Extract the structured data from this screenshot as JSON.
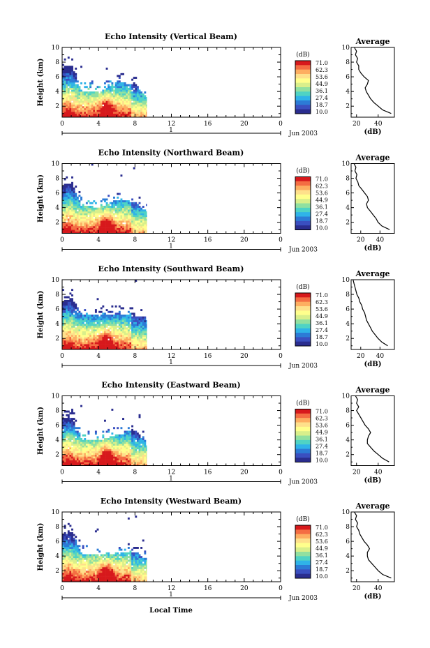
{
  "figure": {
    "xlabel": "Local Time",
    "date_label": "Jun 2003",
    "day_label": "1",
    "colorbar_unit": "(dB)",
    "colorbar_levels": [
      "71.0",
      "62.3",
      "53.6",
      "44.9",
      "36.1",
      "27.4",
      "18.7",
      "10.0"
    ],
    "colorbar_colors": [
      "#d7191c",
      "#f46d43",
      "#fdae61",
      "#fee08b",
      "#ffff8c",
      "#d9ef8b",
      "#91e0a0",
      "#4fd3c4",
      "#2fb3e8",
      "#2c7bd6",
      "#3a4fc0",
      "#2a2d8f"
    ]
  },
  "chart_data": [
    {
      "type": "heatmap",
      "title": "Echo Intensity (Vertical Beam)",
      "ylabel": "Height (km)",
      "xlim": [
        0,
        24
      ],
      "ylim": [
        0.5,
        10
      ],
      "xticks": [
        "0",
        "4",
        "8",
        "12",
        "16",
        "20",
        "0"
      ],
      "yticks": [
        "2",
        "4",
        "6",
        "8",
        "10"
      ],
      "data_end_hour": 9.3,
      "echo_top_km": [
        [
          0,
          7.2
        ],
        [
          1,
          7.4
        ],
        [
          2,
          4.0
        ],
        [
          4,
          3.8
        ],
        [
          6,
          5.2
        ],
        [
          8,
          4.8
        ],
        [
          9.3,
          3.0
        ]
      ],
      "colorbar_range_db": [
        10.0,
        71.0
      ],
      "profile": {
        "title": "Average",
        "xlabel": "(dB)",
        "xticks": [
          "20",
          "40"
        ],
        "xlim": [
          15,
          55
        ],
        "heights_km": [
          1.0,
          1.5,
          2.0,
          2.5,
          3.0,
          3.5,
          4.0,
          4.5,
          5.0,
          5.5,
          6.0,
          6.5,
          7.0,
          7.5,
          8.0,
          8.5,
          9.0,
          9.5,
          10.0
        ],
        "values_db": [
          52,
          44,
          40,
          36,
          33,
          31,
          29,
          28,
          30,
          31,
          27,
          24,
          22,
          22,
          20,
          21,
          19,
          20,
          18
        ]
      }
    },
    {
      "type": "heatmap",
      "title": "Echo Intensity (Northward Beam)",
      "ylabel": "Height (km)",
      "xlim": [
        0,
        24
      ],
      "ylim": [
        0.5,
        10
      ],
      "xticks": [
        "0",
        "4",
        "8",
        "12",
        "16",
        "20",
        "0"
      ],
      "yticks": [
        "2",
        "4",
        "6",
        "8",
        "10"
      ],
      "data_end_hour": 9.3,
      "echo_top_km": [
        [
          0,
          7.0
        ],
        [
          1,
          7.2
        ],
        [
          2,
          4.2
        ],
        [
          4,
          3.9
        ],
        [
          6,
          5.0
        ],
        [
          8,
          4.6
        ],
        [
          9.3,
          3.2
        ]
      ],
      "colorbar_range_db": [
        10.0,
        71.0
      ],
      "profile": {
        "title": "Average",
        "xlabel": "(dB)",
        "xticks": [
          "20",
          "40"
        ],
        "xlim": [
          10,
          55
        ],
        "heights_km": [
          1.0,
          1.5,
          2.0,
          2.5,
          3.0,
          3.5,
          4.0,
          4.5,
          5.0,
          5.5,
          6.0,
          6.5,
          7.0,
          7.5,
          8.0,
          8.5,
          9.0,
          9.5,
          10.0
        ],
        "values_db": [
          50,
          42,
          38,
          36,
          33,
          30,
          27,
          26,
          28,
          27,
          24,
          21,
          18,
          17,
          15,
          16,
          14,
          15,
          13
        ]
      }
    },
    {
      "type": "heatmap",
      "title": "Echo Intensity (Southward Beam)",
      "ylabel": "Height (km)",
      "xlim": [
        0,
        24
      ],
      "ylim": [
        0.5,
        10
      ],
      "xticks": [
        "0",
        "4",
        "8",
        "12",
        "16",
        "20",
        "0"
      ],
      "yticks": [
        "2",
        "4",
        "6",
        "8",
        "10"
      ],
      "data_end_hour": 9.3,
      "echo_top_km": [
        [
          0,
          7.0
        ],
        [
          1,
          7.4
        ],
        [
          2,
          5.2
        ],
        [
          4,
          5.0
        ],
        [
          6,
          5.3
        ],
        [
          8,
          5.0
        ],
        [
          9.3,
          4.6
        ]
      ],
      "colorbar_range_db": [
        10.0,
        71.0
      ],
      "profile": {
        "title": "Average",
        "xlabel": "(dB)",
        "xticks": [
          "20",
          "40"
        ],
        "xlim": [
          10,
          55
        ],
        "heights_km": [
          1.0,
          1.5,
          2.0,
          2.5,
          3.0,
          3.5,
          4.0,
          4.5,
          5.0,
          5.5,
          6.0,
          6.5,
          7.0,
          7.5,
          8.0,
          8.5,
          9.0,
          9.5,
          10.0
        ],
        "values_db": [
          48,
          42,
          38,
          35,
          32,
          30,
          28,
          26,
          25,
          24,
          22,
          21,
          19,
          18,
          16,
          15,
          14,
          13,
          12
        ]
      }
    },
    {
      "type": "heatmap",
      "title": "Echo Intensity (Eastward Beam)",
      "ylabel": "Height (km)",
      "xlim": [
        0,
        24
      ],
      "ylim": [
        0.5,
        10
      ],
      "xticks": [
        "0",
        "4",
        "8",
        "12",
        "16",
        "20",
        "0"
      ],
      "yticks": [
        "2",
        "4",
        "6",
        "8",
        "10"
      ],
      "data_end_hour": 9.3,
      "echo_top_km": [
        [
          0,
          7.0
        ],
        [
          1,
          7.0
        ],
        [
          2,
          4.0
        ],
        [
          4,
          3.8
        ],
        [
          6,
          4.6
        ],
        [
          8,
          5.2
        ],
        [
          9.3,
          3.0
        ]
      ],
      "colorbar_range_db": [
        10.0,
        71.0
      ],
      "profile": {
        "title": "Average",
        "xlabel": "(dB)",
        "xticks": [
          "20",
          "40"
        ],
        "xlim": [
          15,
          55
        ],
        "heights_km": [
          1.0,
          1.5,
          2.0,
          2.5,
          3.0,
          3.5,
          4.0,
          4.5,
          5.0,
          5.5,
          6.0,
          6.5,
          7.0,
          7.5,
          8.0,
          8.5,
          9.0,
          9.5,
          10.0
        ],
        "values_db": [
          50,
          44,
          40,
          36,
          33,
          30,
          30,
          31,
          33,
          31,
          28,
          26,
          24,
          22,
          20,
          22,
          20,
          21,
          19
        ]
      }
    },
    {
      "type": "heatmap",
      "title": "Echo Intensity (Westward Beam)",
      "ylabel": "Height (km)",
      "xlim": [
        0,
        24
      ],
      "ylim": [
        0.5,
        10
      ],
      "xticks": [
        "0",
        "4",
        "8",
        "12",
        "16",
        "20",
        "0"
      ],
      "yticks": [
        "2",
        "4",
        "6",
        "8",
        "10"
      ],
      "data_end_hour": 9.3,
      "echo_top_km": [
        [
          0,
          7.0
        ],
        [
          1,
          7.2
        ],
        [
          2,
          4.2
        ],
        [
          4,
          4.0
        ],
        [
          6,
          4.2
        ],
        [
          8,
          4.5
        ],
        [
          9.3,
          3.2
        ]
      ],
      "colorbar_range_db": [
        10.0,
        71.0
      ],
      "profile": {
        "title": "Average",
        "xlabel": "(dB)",
        "xticks": [
          "20",
          "40"
        ],
        "xlim": [
          15,
          55
        ],
        "heights_km": [
          1.0,
          1.5,
          2.0,
          2.5,
          3.0,
          3.5,
          4.0,
          4.5,
          5.0,
          5.5,
          6.0,
          6.5,
          7.0,
          7.5,
          8.0,
          8.5,
          9.0,
          9.5,
          10.0
        ],
        "values_db": [
          52,
          44,
          40,
          37,
          34,
          31,
          30,
          30,
          32,
          30,
          27,
          25,
          23,
          22,
          20,
          21,
          19,
          20,
          18
        ]
      }
    }
  ]
}
